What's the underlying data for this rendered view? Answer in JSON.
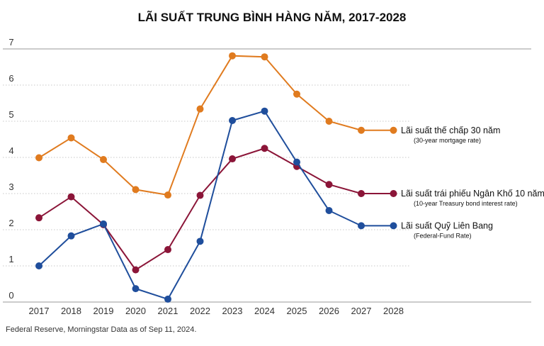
{
  "chart_data": {
    "type": "line",
    "title": "LÃI SUẤT TRUNG BÌNH HÀNG NĂM, 2017-2028",
    "xlabel": "",
    "ylabel": "",
    "categories": [
      "2017",
      "2018",
      "2019",
      "2020",
      "2021",
      "2022",
      "2023",
      "2024",
      "2025",
      "2026",
      "2027",
      "2028"
    ],
    "ylim": [
      0,
      7
    ],
    "yticks": [
      0,
      1,
      2,
      3,
      4,
      5,
      6,
      7
    ],
    "grid": true,
    "series": [
      {
        "name": "Lãi suất thế chấp 30 năm",
        "subtitle": "(30-year mortgage rate)",
        "color": "#e07b1f",
        "values": [
          3.99,
          4.54,
          3.94,
          3.11,
          2.96,
          5.34,
          6.81,
          6.78,
          5.75,
          5.0,
          4.75,
          4.75
        ]
      },
      {
        "name": "Lãi suất trái phiếu Ngân Khố 10 năm",
        "subtitle": "(10-year Treasury bond interest rate)",
        "color": "#8b1538",
        "values": [
          2.33,
          2.91,
          2.14,
          0.89,
          1.45,
          2.95,
          3.96,
          4.25,
          3.75,
          3.25,
          3.0,
          3.0
        ]
      },
      {
        "name": "Lãi suất Quỹ Liên Bang",
        "subtitle": "(Federal-Fund Rate)",
        "color": "#1f4e9c",
        "values": [
          1.0,
          1.83,
          2.16,
          0.37,
          0.08,
          1.68,
          5.02,
          5.28,
          3.87,
          2.53,
          2.11,
          2.11
        ]
      }
    ]
  },
  "source": "Federal Reserve, Morningstar Data as of Sep 11, 2024."
}
